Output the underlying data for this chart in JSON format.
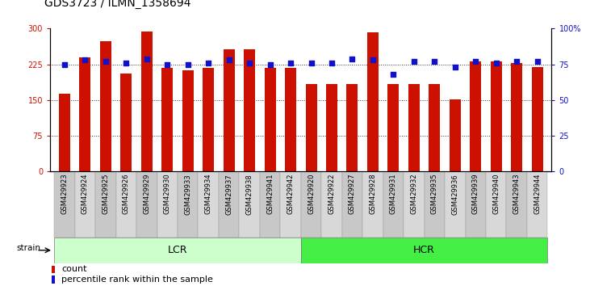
{
  "title": "GDS3723 / ILMN_1358694",
  "categories": [
    "GSM429923",
    "GSM429924",
    "GSM429925",
    "GSM429926",
    "GSM429929",
    "GSM429930",
    "GSM429933",
    "GSM429934",
    "GSM429937",
    "GSM429938",
    "GSM429941",
    "GSM429942",
    "GSM429920",
    "GSM429922",
    "GSM429927",
    "GSM429928",
    "GSM429931",
    "GSM429932",
    "GSM429935",
    "GSM429936",
    "GSM429939",
    "GSM429940",
    "GSM429943",
    "GSM429944"
  ],
  "counts": [
    163,
    240,
    274,
    205,
    294,
    218,
    213,
    218,
    257,
    257,
    218,
    218,
    183,
    183,
    183,
    292,
    183,
    183,
    183,
    152,
    232,
    232,
    228,
    220
  ],
  "percentiles": [
    75,
    78,
    77,
    76,
    79,
    75,
    75,
    76,
    78,
    76,
    75,
    76,
    76,
    76,
    79,
    78,
    68,
    77,
    77,
    73,
    77,
    76,
    77,
    77
  ],
  "lcr_label": "LCR",
  "hcr_label": "HCR",
  "strain_label": "strain",
  "left_ylim": [
    0,
    300
  ],
  "right_ylim": [
    0,
    100
  ],
  "left_yticks": [
    0,
    75,
    150,
    225,
    300
  ],
  "right_yticks": [
    0,
    25,
    50,
    75,
    100
  ],
  "right_yticklabels": [
    "0",
    "25",
    "50",
    "75",
    "100%"
  ],
  "bar_color": "#cc1100",
  "dot_color": "#1111cc",
  "lcr_color": "#ccffcc",
  "hcr_color": "#44ee44",
  "tick_bg_even": "#c8c8c8",
  "tick_bg_odd": "#d8d8d8",
  "grid_color": "#333333",
  "title_fontsize": 10,
  "tick_fontsize": 6,
  "axis_tick_fontsize": 7,
  "legend_fontsize": 8,
  "bar_width": 0.55,
  "n_lcr": 12,
  "n_hcr": 12
}
